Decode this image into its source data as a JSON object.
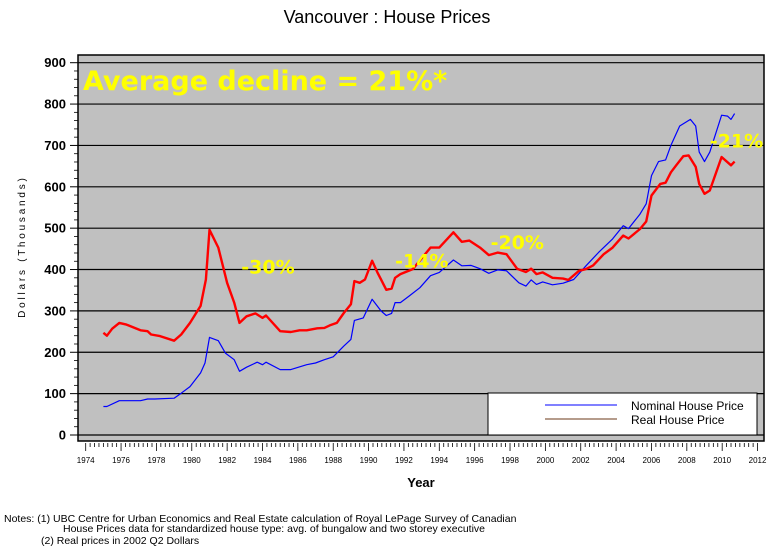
{
  "chart_data": {
    "type": "line",
    "title": "Vancouver : House Prices",
    "xlabel": "Year",
    "ylabel": "D o l l a r s   ( T h o u s a n d s )",
    "xlim": [
      1974,
      2012
    ],
    "ylim": [
      0,
      900
    ],
    "x_ticks": [
      "1974",
      "1976",
      "1978",
      "1980",
      "1982",
      "1984",
      "1986",
      "1988",
      "1990",
      "1992",
      "1994",
      "1996",
      "1998",
      "2000",
      "2002",
      "2004",
      "2006",
      "2008",
      "2010",
      "2012"
    ],
    "y_ticks": [
      "0",
      "100",
      "200",
      "300",
      "400",
      "500",
      "600",
      "700",
      "800",
      "900"
    ],
    "grid": "horizontal",
    "background": "#c0c0c0",
    "legend_position": "bottom-right",
    "series": [
      {
        "name": "Nominal House Price",
        "color": "#0000ff",
        "points": [
          [
            1975.0,
            69
          ],
          [
            1975.2,
            69
          ],
          [
            1975.9,
            83
          ],
          [
            1977.1,
            83
          ],
          [
            1977.5,
            87
          ],
          [
            1977.9,
            87
          ],
          [
            1979.0,
            89
          ],
          [
            1979.4,
            101
          ],
          [
            1979.9,
            117
          ],
          [
            1980.5,
            150
          ],
          [
            1980.75,
            174
          ],
          [
            1981.0,
            236
          ],
          [
            1981.5,
            228
          ],
          [
            1981.9,
            198
          ],
          [
            1982.4,
            182
          ],
          [
            1982.7,
            154
          ],
          [
            1983.1,
            164
          ],
          [
            1983.7,
            176
          ],
          [
            1984.0,
            170
          ],
          [
            1984.2,
            176
          ],
          [
            1985.0,
            158
          ],
          [
            1985.6,
            158
          ],
          [
            1986.5,
            170
          ],
          [
            1987.0,
            174
          ],
          [
            1987.5,
            182
          ],
          [
            1988.0,
            189
          ],
          [
            1988.6,
            215
          ],
          [
            1989.0,
            231
          ],
          [
            1989.2,
            277
          ],
          [
            1989.7,
            283
          ],
          [
            1990.2,
            328
          ],
          [
            1990.7,
            300
          ],
          [
            1991.0,
            289
          ],
          [
            1991.3,
            294
          ],
          [
            1991.5,
            320
          ],
          [
            1991.8,
            320
          ],
          [
            1992.3,
            336
          ],
          [
            1992.9,
            356
          ],
          [
            1993.5,
            385
          ],
          [
            1994.0,
            393
          ],
          [
            1994.8,
            423
          ],
          [
            1995.27,
            409
          ],
          [
            1995.8,
            410
          ],
          [
            1996.3,
            402
          ],
          [
            1996.8,
            391
          ],
          [
            1997.3,
            399
          ],
          [
            1997.8,
            397
          ],
          [
            1998.5,
            368
          ],
          [
            1998.9,
            360
          ],
          [
            1999.2,
            375
          ],
          [
            1999.5,
            364
          ],
          [
            1999.85,
            370
          ],
          [
            2000.4,
            363
          ],
          [
            2001.0,
            367
          ],
          [
            2001.6,
            376
          ],
          [
            2002.3,
            409
          ],
          [
            2003.0,
            441
          ],
          [
            2003.8,
            474
          ],
          [
            2004.4,
            506
          ],
          [
            2004.7,
            499
          ],
          [
            2005.35,
            534
          ],
          [
            2005.7,
            559
          ],
          [
            2006.0,
            627
          ],
          [
            2006.4,
            661
          ],
          [
            2006.8,
            665
          ],
          [
            2007.1,
            700
          ],
          [
            2007.6,
            747
          ],
          [
            2008.2,
            763
          ],
          [
            2008.5,
            747
          ],
          [
            2008.7,
            684
          ],
          [
            2009.0,
            661
          ],
          [
            2009.3,
            684
          ],
          [
            2009.97,
            773
          ],
          [
            2010.3,
            771
          ],
          [
            2010.5,
            763
          ],
          [
            2010.7,
            777
          ]
        ]
      },
      {
        "name": "Real House Price",
        "color": "#ff0000",
        "points": [
          [
            1975.0,
            247
          ],
          [
            1975.2,
            240
          ],
          [
            1975.5,
            257
          ],
          [
            1975.9,
            271
          ],
          [
            1976.3,
            267
          ],
          [
            1977.1,
            253
          ],
          [
            1977.5,
            251
          ],
          [
            1977.7,
            243
          ],
          [
            1978.2,
            239
          ],
          [
            1979.0,
            228
          ],
          [
            1979.4,
            243
          ],
          [
            1979.9,
            271
          ],
          [
            1980.5,
            312
          ],
          [
            1980.8,
            376
          ],
          [
            1981.0,
            496
          ],
          [
            1981.5,
            453
          ],
          [
            1982.0,
            368
          ],
          [
            1982.4,
            320
          ],
          [
            1982.7,
            271
          ],
          [
            1983.1,
            287
          ],
          [
            1983.6,
            294
          ],
          [
            1984.0,
            283
          ],
          [
            1984.2,
            289
          ],
          [
            1985.0,
            251
          ],
          [
            1985.6,
            249
          ],
          [
            1986.1,
            253
          ],
          [
            1986.5,
            253
          ],
          [
            1987.1,
            258
          ],
          [
            1987.5,
            259
          ],
          [
            1987.8,
            265
          ],
          [
            1988.2,
            271
          ],
          [
            1988.6,
            295
          ],
          [
            1989.0,
            316
          ],
          [
            1989.2,
            372
          ],
          [
            1989.5,
            368
          ],
          [
            1989.8,
            376
          ],
          [
            1990.2,
            421
          ],
          [
            1990.5,
            393
          ],
          [
            1991.0,
            351
          ],
          [
            1991.3,
            354
          ],
          [
            1991.5,
            380
          ],
          [
            1991.8,
            389
          ],
          [
            1992.5,
            401
          ],
          [
            1993.5,
            453
          ],
          [
            1994.0,
            453
          ],
          [
            1994.8,
            490
          ],
          [
            1995.27,
            467
          ],
          [
            1995.7,
            470
          ],
          [
            1996.3,
            453
          ],
          [
            1996.8,
            435
          ],
          [
            1997.3,
            441
          ],
          [
            1997.8,
            437
          ],
          [
            1998.4,
            402
          ],
          [
            1998.9,
            394
          ],
          [
            1999.2,
            402
          ],
          [
            1999.5,
            389
          ],
          [
            1999.85,
            393
          ],
          [
            2000.4,
            380
          ],
          [
            2001.0,
            378
          ],
          [
            2001.3,
            375
          ],
          [
            2001.9,
            397
          ],
          [
            2002.3,
            401
          ],
          [
            2002.7,
            410
          ],
          [
            2003.3,
            437
          ],
          [
            2003.8,
            453
          ],
          [
            2004.4,
            482
          ],
          [
            2004.7,
            475
          ],
          [
            2005.35,
            498
          ],
          [
            2005.7,
            516
          ],
          [
            2006.0,
            579
          ],
          [
            2006.5,
            607
          ],
          [
            2006.8,
            610
          ],
          [
            2007.1,
            635
          ],
          [
            2007.4,
            652
          ],
          [
            2007.8,
            674
          ],
          [
            2008.1,
            676
          ],
          [
            2008.5,
            648
          ],
          [
            2008.7,
            607
          ],
          [
            2009.0,
            583
          ],
          [
            2009.3,
            591
          ],
          [
            2009.97,
            672
          ],
          [
            2010.5,
            652
          ],
          [
            2010.7,
            661
          ]
        ]
      }
    ],
    "annotations": [
      {
        "text": "Average decline = 21%*",
        "color": "#ffff00"
      },
      {
        "text": "-30%",
        "x": 1982.8,
        "y": 390,
        "color": "#ffff00"
      },
      {
        "text": "-14%",
        "x": 1991.5,
        "y": 405,
        "color": "#ffff00"
      },
      {
        "text": "-20%",
        "x": 1996.9,
        "y": 450,
        "color": "#ffff00"
      },
      {
        "text": "-21%",
        "x": 2009.3,
        "y": 695,
        "color": "#ffff00"
      }
    ]
  },
  "notes": {
    "line1": "Notes: (1) UBC Centre for Urban Economics and Real Estate calculation of Royal LePage Survey of Canadian",
    "line2": "House Prices data for standardized house type: avg. of bungalow and two storey executive",
    "line3": "(2) Real prices in 2002 Q2 Dollars"
  }
}
